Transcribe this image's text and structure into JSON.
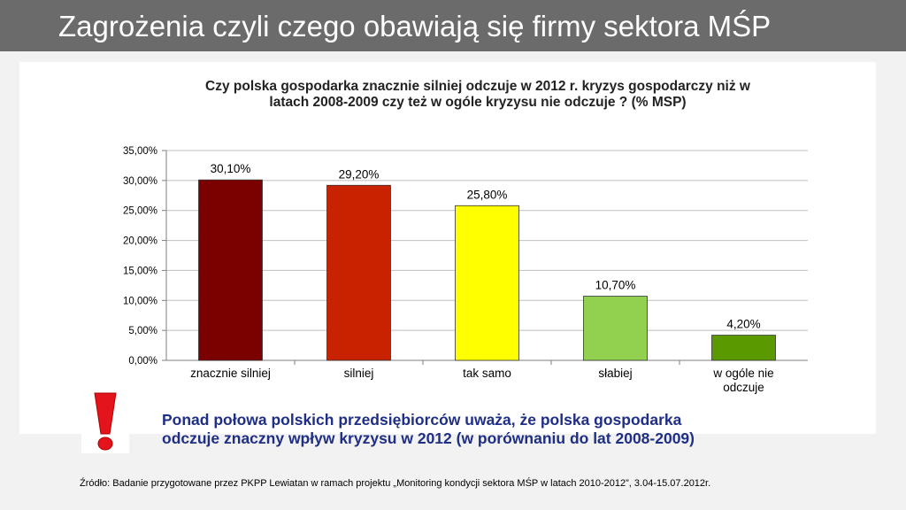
{
  "slide": {
    "title": "Zagrożenia czyli czego obawiają się firmy sektora MŚP",
    "note_line1": "Ponad połowa polskich przedsiębiorców uważa, że polska gospodarka",
    "note_line2": "odczuje znaczny wpływ kryzysu w 2012 (w porównaniu do lat 2008-2009)",
    "source": "Źródło: Badanie przygotowane przez PKPP Lewiatan w ramach projektu „Monitoring kondycji sektora MŚP w latach 2010-2012”, 3.04-15.07.2012r.",
    "icon": "exclamation-mark-icon"
  },
  "chart_data": {
    "type": "bar",
    "title_line1": "Czy polska gospodarka znacznie silniej odczuje w 2012 r. kryzys gospodarczy niż w",
    "title_line2": "latach 2008-2009 czy też w ogóle kryzysu nie odczuje ? (% MSP)",
    "categories": [
      [
        "znacznie silniej"
      ],
      [
        "silniej"
      ],
      [
        "tak samo"
      ],
      [
        "słabiej"
      ],
      [
        "w ogóle nie",
        "odczuje"
      ]
    ],
    "values": [
      30.1,
      29.2,
      25.8,
      10.7,
      4.2
    ],
    "value_labels": [
      "30,10%",
      "29,20%",
      "25,80%",
      "10,70%",
      "4,20%"
    ],
    "colors": [
      "#7b0000",
      "#c92200",
      "#ffff00",
      "#92d050",
      "#5a9a00"
    ],
    "yticks": [
      "0,00%",
      "5,00%",
      "10,00%",
      "15,00%",
      "20,00%",
      "25,00%",
      "30,00%",
      "35,00%"
    ],
    "ylim": [
      0,
      35
    ],
    "grid": true,
    "legend": "none"
  }
}
